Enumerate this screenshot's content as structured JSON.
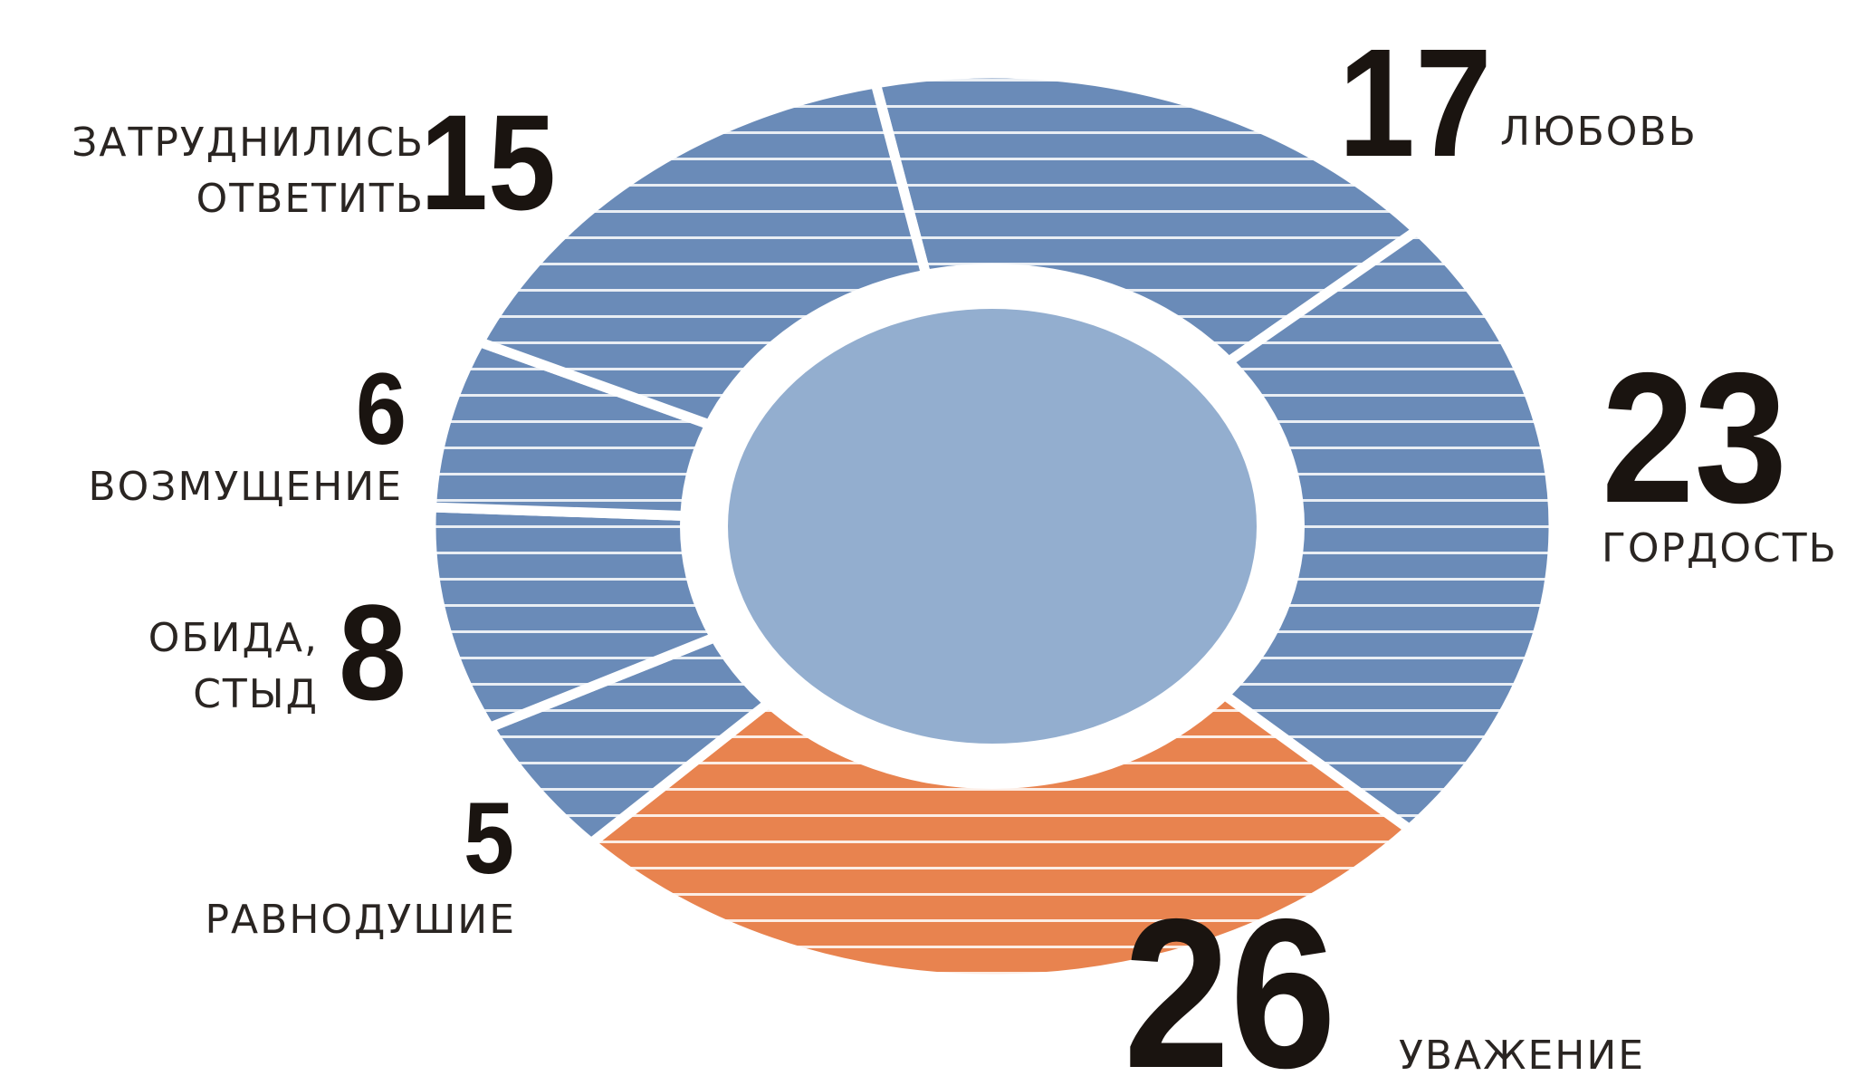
{
  "chart_data": {
    "type": "donut",
    "categories": [
      [
        "ЛЮБОВЬ"
      ],
      [
        "ГОРДОСТЬ"
      ],
      [
        "УВАЖЕНИЕ"
      ],
      [
        "РАВНОДУШИЕ"
      ],
      [
        "ОБИДА,",
        "СТЫД"
      ],
      [
        "ВОЗМУЩЕНИЕ"
      ],
      [
        "ЗАТРУДНИЛИСЬ",
        "ОТВЕТИТЬ"
      ]
    ],
    "values": [
      17,
      23,
      26,
      5,
      8,
      6,
      15
    ],
    "colors": [
      "#6a8bb8",
      "#6a8bb8",
      "#e8834f",
      "#6a8bb8",
      "#6a8bb8",
      "#6a8bb8",
      "#6a8bb8"
    ],
    "center_color": "#93aecf"
  }
}
